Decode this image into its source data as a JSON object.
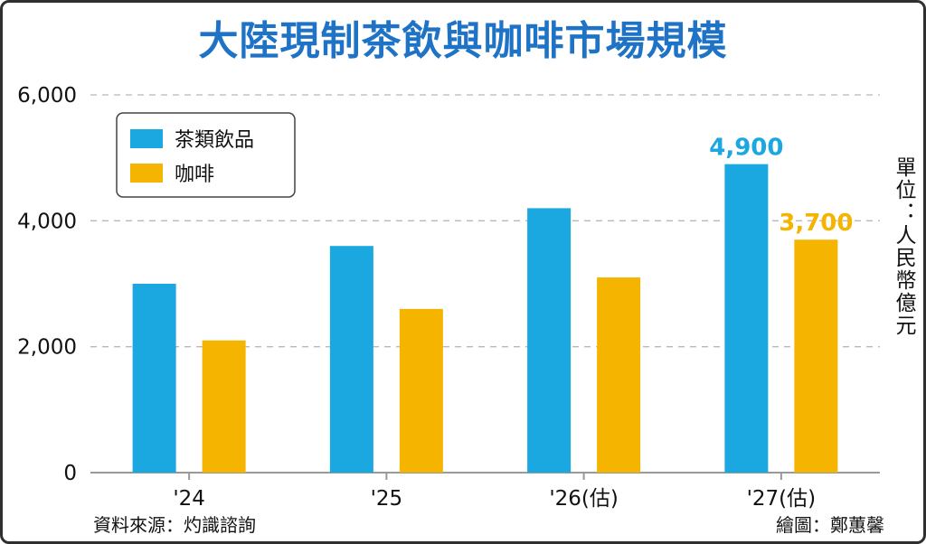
{
  "colors": {
    "title": "#1f73c6",
    "tea": "#1ba8e0",
    "coffee": "#f5b400",
    "grid": "#b8b8b8",
    "axis": "#999999"
  },
  "chart_data": {
    "type": "bar",
    "title": "大陸現制茶飲與咖啡市場規模",
    "categories": [
      "'24",
      "'25",
      "'26(估)",
      "'27(估)"
    ],
    "series": [
      {
        "name": "茶類飲品",
        "values": [
          3000,
          3600,
          4200,
          4900
        ],
        "color": "#1ba8e0"
      },
      {
        "name": "咖啡",
        "values": [
          2100,
          2600,
          3100,
          3700
        ],
        "color": "#f5b400"
      }
    ],
    "data_labels": [
      {
        "series": 0,
        "index": 3,
        "text": "4,900"
      },
      {
        "series": 1,
        "index": 3,
        "text": "3,700"
      }
    ],
    "y_ticks": [
      0,
      2000,
      4000,
      6000
    ],
    "y_tick_labels": [
      "0",
      "2,000",
      "4,000",
      "6,000"
    ],
    "ylim": [
      0,
      6000
    ],
    "grid": true,
    "legend_position": "top-left",
    "unit_label": "單位：人民幣億元"
  },
  "footer": {
    "source": "資料來源：灼識諮詢",
    "credit": "繪圖：鄭蕙馨"
  }
}
